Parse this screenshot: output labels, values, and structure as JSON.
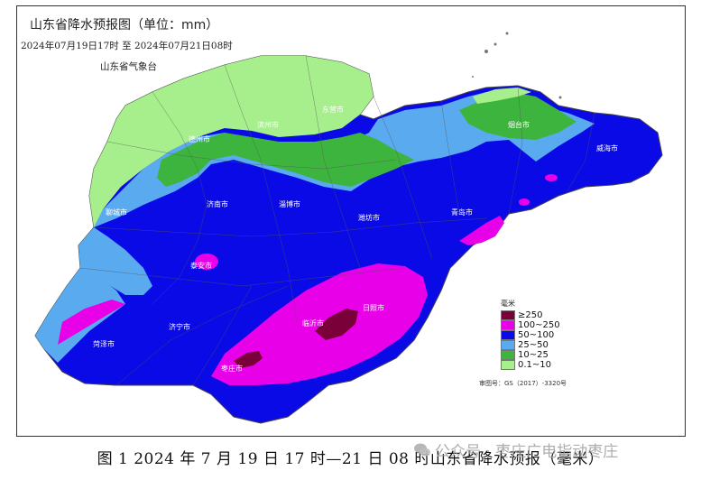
{
  "map": {
    "title": "山东省降水预报图（单位：mm）",
    "period": "2024年07月19日17时  至  2024年07月21日08时",
    "issuer": "山东省气象台",
    "legend_title": "毫米",
    "legend": [
      {
        "label": "≥250",
        "color": "#7a0039"
      },
      {
        "label": "100~250",
        "color": "#e800e8"
      },
      {
        "label": "50~100",
        "color": "#0a0ae6"
      },
      {
        "label": "25~50",
        "color": "#5aaaf0"
      },
      {
        "label": "10~25",
        "color": "#3db43d"
      },
      {
        "label": "0.1~10",
        "color": "#a6ef8c"
      }
    ],
    "review_number": "审图号：GS（2017）-3320号",
    "cities": {
      "dongying": "东营市",
      "binzhou": "滨州市",
      "dezhou": "德州市",
      "yantai": "烟台市",
      "weihai": "威海市",
      "jinan": "济南市",
      "zibo": "淄博市",
      "liaocheng": "聊城市",
      "weifang": "潍坊市",
      "qingdao": "青岛市",
      "taian": "泰安市",
      "rizhao": "日照市",
      "linyi": "临沂市",
      "jining": "济宁市",
      "heze": "菏泽市",
      "zaozhuang": "枣庄市"
    }
  },
  "caption": "图 1  2024 年 7 月 19 日 17 时—21 日 08 时山东省降水预报（毫米）",
  "watermark": "公众号 · 枣庄广电指动枣庄"
}
